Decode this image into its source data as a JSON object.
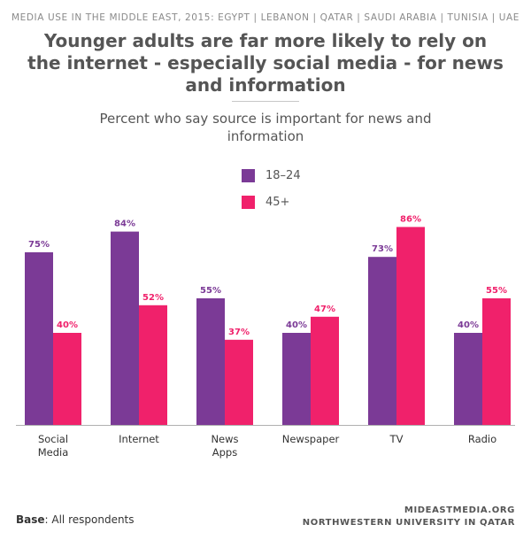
{
  "header": {
    "kicker": "MEDIA USE IN THE MIDDLE EAST, 2015: EGYPT | LEBANON | QATAR | SAUDI ARABIA | TUNISIA | UAE",
    "title": "Younger adults are far more likely to rely on the internet - especially social media - for news and information",
    "subtitle": "Percent who say source is important for news and information"
  },
  "colors": {
    "series_a": "#7b3a96",
    "series_b": "#f0216b",
    "axis": "#b0b0b0"
  },
  "chart_data": {
    "type": "bar",
    "title": "Younger adults are far more likely to rely on the internet - especially social media - for news and information",
    "subtitle": "Percent who say source is important for news and information",
    "categories": [
      [
        "Social",
        "Media"
      ],
      [
        "Internet"
      ],
      [
        "News",
        "Apps"
      ],
      [
        "Newspaper"
      ],
      [
        "TV"
      ],
      [
        "Radio"
      ]
    ],
    "series": [
      {
        "name": "18–24",
        "values": [
          75,
          84,
          55,
          40,
          73,
          40
        ]
      },
      {
        "name": "45+",
        "values": [
          40,
          52,
          37,
          47,
          86,
          55
        ]
      }
    ],
    "value_suffix": "%",
    "ylim": [
      0,
      100
    ],
    "legend": "top-center",
    "grid": false
  },
  "footer": {
    "base_label": "Base",
    "base_text": ": All respondents",
    "source_line1": "MIDEASTMEDIA.ORG",
    "source_line2": "NORTHWESTERN UNIVERSITY IN QATAR"
  }
}
